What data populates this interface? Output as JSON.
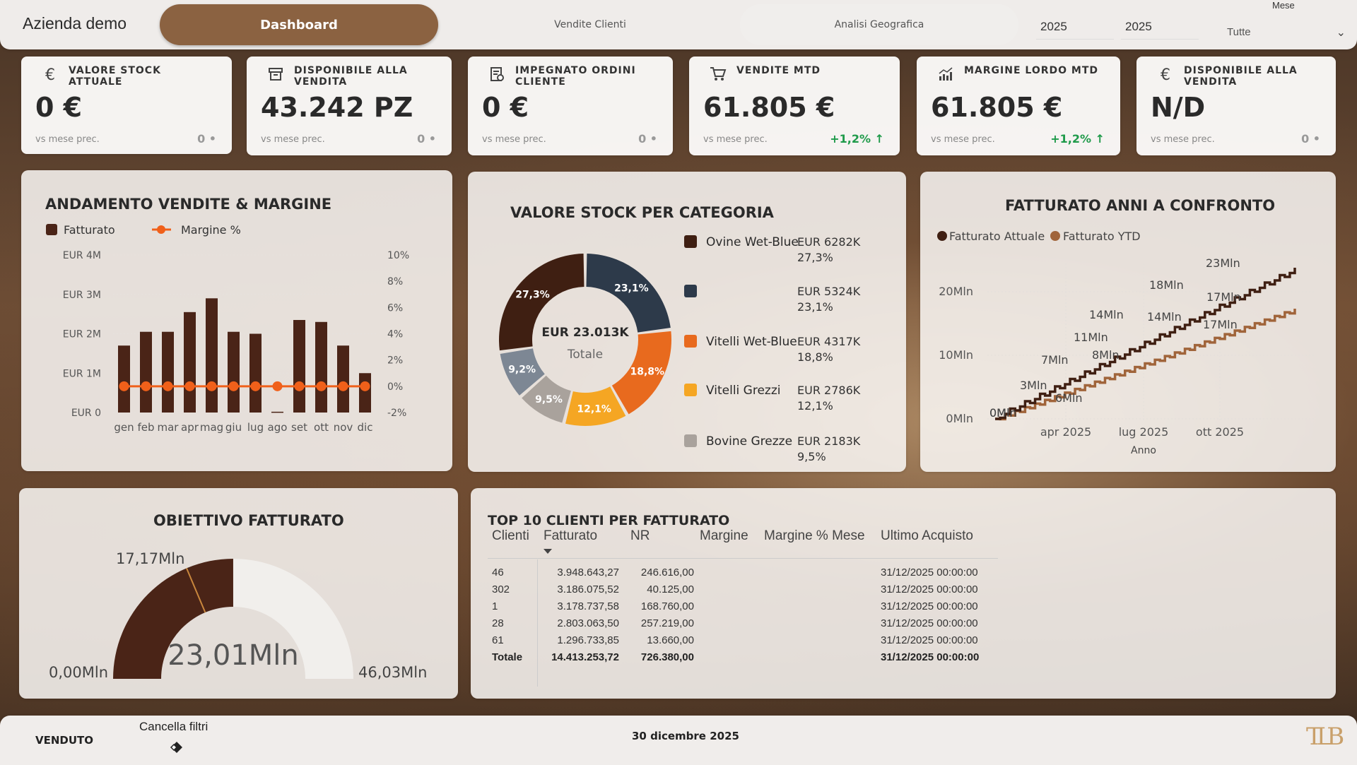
{
  "header": {
    "company": "Azienda demo",
    "tabs": [
      "Dashboard",
      "Vendite Clienti",
      "Analisi Geografica"
    ],
    "year1": "2025",
    "year2": "2025",
    "mese_label": "Mese",
    "mese_value": "Tutte"
  },
  "kpis": [
    {
      "title": "VALORE STOCK ATTUALE",
      "value": "0 €",
      "sub": "vs mese prec.",
      "delta": "0 •",
      "icon": "euro-icon"
    },
    {
      "title": "DISPONIBILE ALLA VENDITA",
      "value": "43.242 PZ",
      "sub": "vs mese prec.",
      "delta": "0 •",
      "icon": "box-icon"
    },
    {
      "title": "IMPEGNATO ORDINI CLIENTE",
      "value": "0 €",
      "sub": "vs mese prec.",
      "delta": "0 •",
      "icon": "invoice-icon"
    },
    {
      "title": "VENDITE MTD",
      "value": "61.805 €",
      "sub": "vs mese prec.",
      "delta": "+1,2% ↑",
      "icon": "cart-icon"
    },
    {
      "title": "MARGINE LORDO MTD",
      "value": "61.805 €",
      "sub": "vs mese prec.",
      "delta": "+1,2% ↑",
      "icon": "chart-up-icon"
    },
    {
      "title": "DISPONIBILE ALLA VENDITA",
      "value": "N/D",
      "sub": "vs mese prec.",
      "delta": "0 •",
      "icon": "euro-icon"
    }
  ],
  "sales_chart": {
    "title": "ANDAMENTO VENDITE & MARGINE",
    "legend": [
      "Fatturato",
      "Margine %"
    ],
    "y_left_ticks": [
      "EUR 4M",
      "EUR 3M",
      "EUR 2M",
      "EUR 1M",
      "EUR 0"
    ],
    "y_right_ticks": [
      "10%",
      "8%",
      "6%",
      "4%",
      "2%",
      "0%",
      "-2%"
    ],
    "months": [
      "gen",
      "feb",
      "mar",
      "apr",
      "mag",
      "giu",
      "lug",
      "ago",
      "set",
      "ott",
      "nov",
      "dic"
    ],
    "fatturato_mln": [
      1.7,
      2.05,
      2.05,
      2.55,
      2.9,
      2.05,
      2.0,
      0.02,
      2.35,
      2.3,
      1.7,
      1.0
    ],
    "margine_pct": [
      0,
      0,
      0,
      0,
      0,
      0,
      0,
      0,
      0,
      0,
      0,
      0
    ],
    "colors": {
      "bar": "#4a2417",
      "line": "#f0601a"
    }
  },
  "stock_chart": {
    "title": "VALORE STOCK PER CATEGORIA",
    "center_value": "EUR 23.013K",
    "center_label": "Totale",
    "slices": [
      {
        "name": "Ovine Wet-Blue",
        "value": "EUR 6282K",
        "pct": "27,3%",
        "share": 27.3,
        "color": "#3f1f12"
      },
      {
        "name": "",
        "value": "EUR 5324K",
        "pct": "23,1%",
        "share": 23.1,
        "color": "#2d3a4a"
      },
      {
        "name": "Vitelli Wet-Blue",
        "value": "EUR 4317K",
        "pct": "18,8%",
        "share": 18.8,
        "color": "#e86a1e"
      },
      {
        "name": "Vitelli Grezzi",
        "value": "EUR 2786K",
        "pct": "12,1%",
        "share": 12.1,
        "color": "#f5a623"
      },
      {
        "name": "Bovine Grezze",
        "value": "EUR 2183K",
        "pct": "9,5%",
        "share": 9.5,
        "color": "#a9a29c"
      },
      {
        "name": "",
        "value": "",
        "pct": "9,2%",
        "share": 9.2,
        "color": "#7d8794"
      }
    ]
  },
  "yoy_chart": {
    "title": "FATTURATO ANNI A CONFRONTO",
    "legend": [
      "Fatturato Attuale",
      "Fatturato YTD"
    ],
    "y_ticks": [
      "20Mln",
      "10Mln",
      "0Mln"
    ],
    "x_ticks": [
      "apr 2025",
      "lug 2025",
      "ott 2025"
    ],
    "xlabel": "Anno",
    "labels_attuale": [
      "0Mln",
      "3Mln",
      "7Mln",
      "11Mln",
      "14Mln",
      "18Mln",
      "23Mln"
    ],
    "labels_ytd": [
      "0Mln",
      "6Mln",
      "8Mln",
      "14Mln",
      "17Mln",
      "17Mln"
    ],
    "colors": {
      "attuale": "#3f1f12",
      "ytd": "#a0643a"
    }
  },
  "gauge": {
    "title": "OBIETTIVO FATTURATO",
    "value": "23,01Mln",
    "min": "0,00Mln",
    "max": "46,03Mln",
    "target": "17,17Mln",
    "value_num": 23.01,
    "max_num": 46.03,
    "target_num": 17.17,
    "colors": {
      "fill": "#4a2417",
      "track": "#f1efec",
      "target": "#c9873d"
    }
  },
  "top_clients": {
    "title": "TOP 10 CLIENTI PER FATTURATO",
    "columns": [
      "Clienti",
      "Fatturato",
      "NR",
      "Margine",
      "Margine % Mese",
      "Ultimo Acquisto"
    ],
    "rows": [
      {
        "cliente": "46",
        "fatturato": "3.948.643,27",
        "nr": "246.616,00",
        "ultimo": "31/12/2025 00:00:00"
      },
      {
        "cliente": "302",
        "fatturato": "3.186.075,52",
        "nr": "40.125,00",
        "ultimo": "31/12/2025 00:00:00"
      },
      {
        "cliente": "1",
        "fatturato": "3.178.737,58",
        "nr": "168.760,00",
        "ultimo": "31/12/2025 00:00:00"
      },
      {
        "cliente": "28",
        "fatturato": "2.803.063,50",
        "nr": "257.219,00",
        "ultimo": "31/12/2025 00:00:00"
      },
      {
        "cliente": "61",
        "fatturato": "1.296.733,85",
        "nr": "13.660,00",
        "ultimo": "31/12/2025 00:00:00"
      }
    ],
    "total": {
      "cliente": "Totale",
      "fatturato": "14.413.253,72",
      "nr": "726.380,00",
      "ultimo": "31/12/2025 00:00:00"
    }
  },
  "footer": {
    "venduto": "VENDUTO",
    "clear_filters": "Cancella filtri",
    "date": "30 dicembre 2025",
    "logo": "TLB"
  }
}
